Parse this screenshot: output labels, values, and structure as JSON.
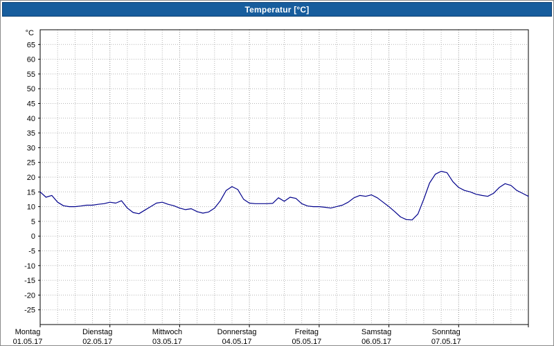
{
  "window": {
    "title": "Temperatur [°C]"
  },
  "colors": {
    "titlebar_bg": "#175d9d",
    "titlebar_text": "#ffffff",
    "background": "#ffffff",
    "plot_border": "#000000",
    "grid_minor": "#b4b4b4",
    "grid_major": "#8f8f8f",
    "axis_text": "#000000",
    "line": "#00008b"
  },
  "chart_data": {
    "type": "line",
    "title": "Temperatur [°C]",
    "ylabel": "°C",
    "ylim": [
      -30,
      70
    ],
    "y_ticks": [
      65,
      60,
      55,
      50,
      45,
      40,
      35,
      30,
      25,
      20,
      15,
      10,
      5,
      0,
      -5,
      -10,
      -15,
      -20,
      -25
    ],
    "x_unit": "hours",
    "xlim": [
      0,
      168
    ],
    "grid": {
      "style": "dotted",
      "horizontal_step": 5,
      "vertical_step_hours": 6
    },
    "x_day_ticks": [
      {
        "hour": 0,
        "weekday": "Montag",
        "date": "01.05.17"
      },
      {
        "hour": 24,
        "weekday": "Dienstag",
        "date": "02.05.17"
      },
      {
        "hour": 48,
        "weekday": "Mittwoch",
        "date": "03.05.17"
      },
      {
        "hour": 72,
        "weekday": "Donnerstag",
        "date": "04.05.17"
      },
      {
        "hour": 96,
        "weekday": "Freitag",
        "date": "05.05.17"
      },
      {
        "hour": 120,
        "weekday": "Samstag",
        "date": "06.05.17"
      },
      {
        "hour": 144,
        "weekday": "Sonntag",
        "date": "07.05.17"
      }
    ],
    "series": [
      {
        "name": "Temperatur",
        "color": "#00008b",
        "x_hours": [
          0,
          2,
          4,
          6,
          8,
          10,
          12,
          14,
          16,
          18,
          20,
          22,
          24,
          26,
          28,
          30,
          32,
          34,
          36,
          38,
          40,
          42,
          44,
          46,
          48,
          50,
          52,
          54,
          56,
          58,
          60,
          62,
          64,
          66,
          68,
          70,
          72,
          74,
          76,
          78,
          80,
          82,
          84,
          86,
          88,
          90,
          92,
          94,
          96,
          98,
          100,
          102,
          104,
          106,
          108,
          110,
          112,
          114,
          116,
          118,
          120,
          122,
          124,
          126,
          128,
          130,
          132,
          134,
          136,
          138,
          140,
          142,
          144,
          146,
          148,
          150,
          152,
          154,
          156,
          158,
          160,
          162,
          164,
          166,
          168
        ],
        "values": [
          15,
          13.2,
          13.8,
          11.5,
          10.3,
          10,
          10,
          10.2,
          10.5,
          10.5,
          10.8,
          11,
          11.5,
          11.2,
          12,
          9.5,
          8,
          7.6,
          8.8,
          10,
          11.2,
          11.5,
          10.8,
          10.3,
          9.5,
          9,
          9.3,
          8.3,
          7.8,
          8.2,
          9.5,
          12,
          15.5,
          16.8,
          15.8,
          12.5,
          11.2,
          11,
          11,
          11,
          11.1,
          13,
          11.8,
          13.2,
          12.8,
          11,
          10.2,
          10,
          10,
          9.8,
          9.5,
          10,
          10.5,
          11.5,
          13,
          13.8,
          13.5,
          14,
          13,
          11.5,
          10,
          8.3,
          6.5,
          5.6,
          5.5,
          7.5,
          12.5,
          18,
          21,
          22,
          21.5,
          18.5,
          16.5,
          15.5,
          15,
          14.2,
          13.8,
          13.5,
          14.5,
          16.5,
          17.8,
          17.2,
          15.5,
          14.5,
          13.5
        ]
      }
    ]
  }
}
